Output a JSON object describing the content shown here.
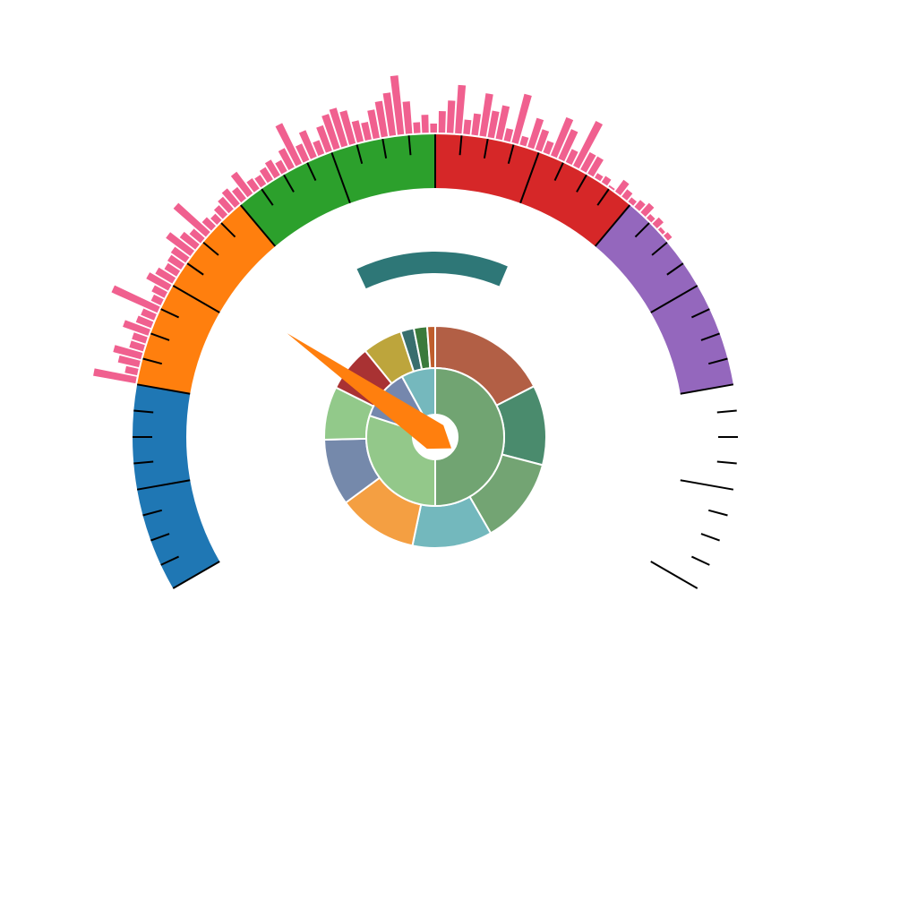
{
  "chart_data": [
    {
      "type": "gauge",
      "range": [
        0,
        240
      ],
      "sweep_degrees": [
        -120,
        120
      ],
      "bands": [
        {
          "name": "blue",
          "from": 0,
          "to": 40,
          "color": "#1f77b4"
        },
        {
          "name": "orange",
          "from": 40,
          "to": 80,
          "color": "#ff7f0e"
        },
        {
          "name": "green",
          "from": 80,
          "to": 120,
          "color": "#2ca02c"
        },
        {
          "name": "red",
          "from": 120,
          "to": 160,
          "color": "#d62728"
        },
        {
          "name": "purple",
          "from": 160,
          "to": 200,
          "color": "#9467bd"
        }
      ],
      "major_ticks_every": 20,
      "minor_ticks_every": 5,
      "needle": {
        "value": 65,
        "color": "#ff7f0e"
      },
      "progress_arc": {
        "from": 95,
        "to": 143,
        "color": "#2e7777"
      }
    },
    {
      "type": "bar",
      "layout": "radial",
      "color": "#f0608f",
      "range": [
        40,
        170
      ],
      "values": [
        24,
        7,
        12,
        16,
        8,
        8,
        15,
        9,
        8,
        28,
        6,
        8,
        14,
        11,
        8,
        9,
        10,
        17,
        11,
        8,
        24,
        7,
        5,
        7,
        9,
        11,
        8,
        15,
        7,
        6,
        8,
        10,
        7,
        12,
        25,
        10,
        16,
        8,
        15,
        20,
        22,
        19,
        12,
        10,
        16,
        20,
        24,
        33,
        18,
        6,
        10,
        5,
        12,
        18,
        27,
        8,
        12,
        24,
        15,
        19,
        7,
        28,
        5,
        17,
        12,
        7,
        23,
        18,
        8,
        28,
        11,
        11,
        3,
        4,
        1,
        8,
        5,
        3,
        5,
        7,
        3,
        5,
        2,
        3
      ]
    },
    {
      "type": "pie",
      "layout": "sunburst",
      "inner_ring": [
        {
          "value": 50,
          "color": "#71a472"
        },
        {
          "value": 30,
          "color": "#93c88a"
        },
        {
          "value": 12,
          "color": "#7587ad"
        },
        {
          "value": 8,
          "color": "#75b8bd"
        }
      ],
      "outer_ring": [
        {
          "value": 18,
          "color": "#b25f45"
        },
        {
          "value": 12,
          "color": "#4a8b6d"
        },
        {
          "value": 13,
          "color": "#73a473"
        },
        {
          "value": 12,
          "color": "#73b8bd"
        },
        {
          "value": 12,
          "color": "#f49f42"
        },
        {
          "value": 10,
          "color": "#7589ab"
        },
        {
          "value": 8,
          "color": "#92c98a"
        },
        {
          "value": 7,
          "color": "#a93233"
        },
        {
          "value": 6,
          "color": "#bda53c"
        },
        {
          "value": 2,
          "color": "#386e6e"
        },
        {
          "value": 2,
          "color": "#3b7a3b"
        },
        {
          "value": 1.2,
          "color": "#bf5d2c"
        }
      ]
    }
  ]
}
